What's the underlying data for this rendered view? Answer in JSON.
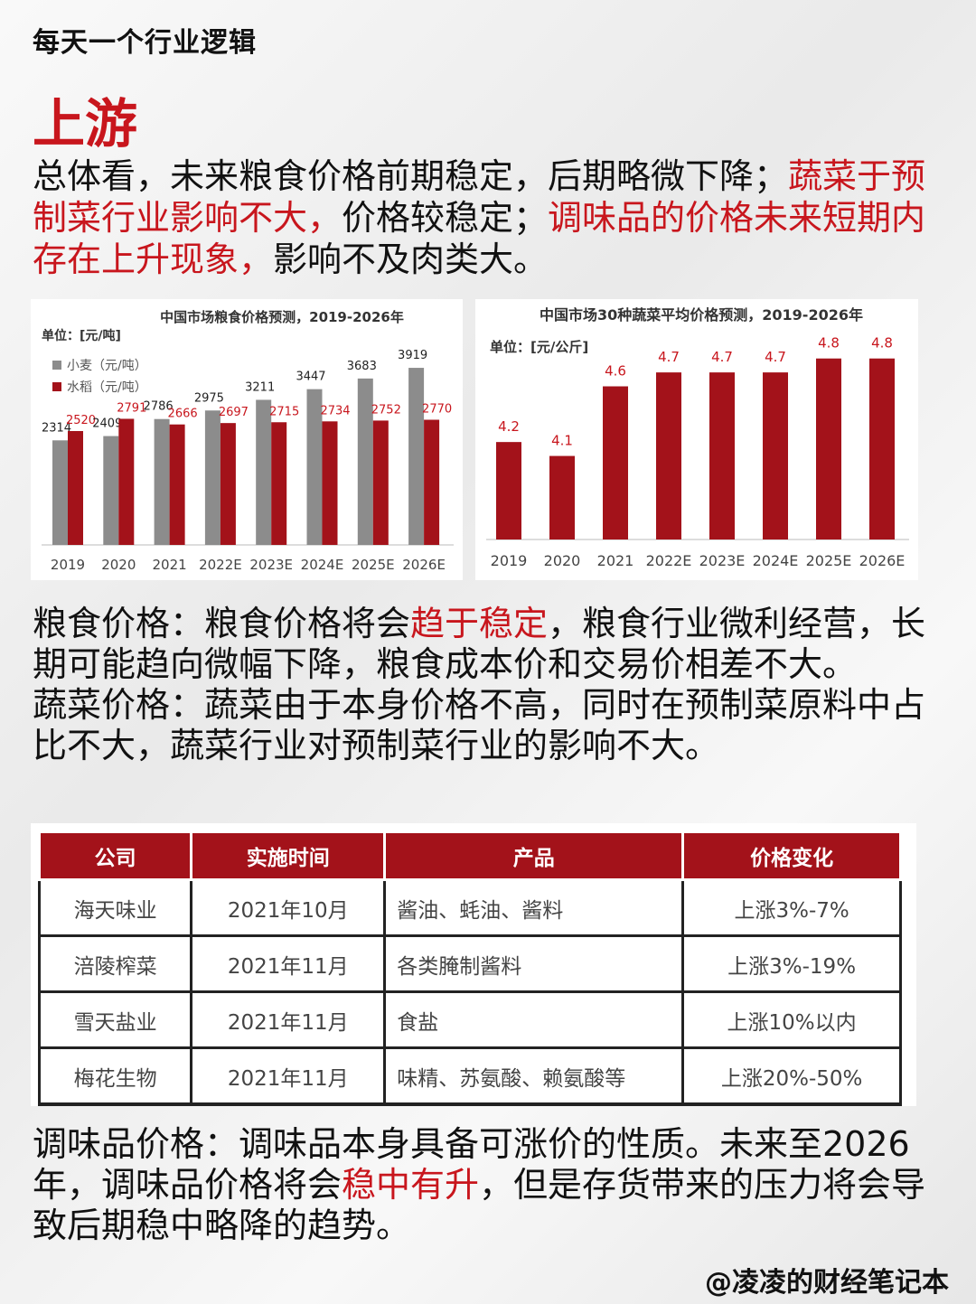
{
  "header": {
    "series_title": "每天一个行业逻辑",
    "section_title": "上游"
  },
  "intro": {
    "s1": "总体看，未来粮食价格前期稳定，后期略微下降；",
    "s2": "蔬菜于预制菜行业影响不大，",
    "s3": "价格较稳定；",
    "s4": "调味品的价格未来短期内存在上升现象，",
    "s5": "影响不及肉类大。"
  },
  "grain_text": {
    "a": "粮食价格：粮食价格将会",
    "b": "趋于稳定",
    "c": "，粮食行业微利经营，长期可能趋向微幅下降，粮食成本价和交易价相差不大。"
  },
  "veg_text": {
    "a": "蔬菜价格：蔬菜由于本身价格不高，同时在预制菜原料中占比不大，蔬菜行业对预制菜行业的影响不大。"
  },
  "seasoning_text": {
    "a": "调味品价格：调味品本身具备可涨价的性质。未来至2026年，调味品价格将会",
    "b": "稳中有升",
    "c": "，但是存货带来的压力将会导致后期稳中略降的趋势。"
  },
  "chart_data": [
    {
      "type": "bar",
      "title": "中国市场粮食价格预测，2019-2026年",
      "unit": "单位：[元/吨]",
      "categories": [
        "2019",
        "2020",
        "2021",
        "2022E",
        "2023E",
        "2024E",
        "2025E",
        "2026E"
      ],
      "series": [
        {
          "name": "小麦（元/吨）",
          "color": "#8c8c8c",
          "values": [
            2314,
            2409,
            2786,
            2975,
            3211,
            3447,
            3683,
            3919
          ]
        },
        {
          "name": "水稻（元/吨）",
          "color": "#a3121a",
          "values": [
            2520,
            2791,
            2666,
            2697,
            2715,
            2734,
            2752,
            2770
          ]
        }
      ],
      "ylim": [
        0,
        4000
      ]
    },
    {
      "type": "bar",
      "title": "中国市场30种蔬菜平均价格预测，2019-2026年",
      "unit": "单位：[元/公斤]",
      "categories": [
        "2019",
        "2020",
        "2021",
        "2022E",
        "2023E",
        "2024E",
        "2025E",
        "2026E"
      ],
      "values": [
        4.2,
        4.1,
        4.6,
        4.7,
        4.7,
        4.7,
        4.8,
        4.8
      ],
      "color": "#a3121a",
      "ylim": [
        3.5,
        4.85
      ]
    }
  ],
  "table": {
    "headers": [
      "公司",
      "实施时间",
      "产品",
      "价格变化"
    ],
    "rows": [
      [
        "海天味业",
        "2021年10月",
        "酱油、蚝油、酱料",
        "上涨3%-7%"
      ],
      [
        "涪陵榨菜",
        "2021年11月",
        "各类腌制酱料",
        "上涨3%-19%"
      ],
      [
        "雪天盐业",
        "2021年11月",
        "食盐",
        "上涨10%以内"
      ],
      [
        "梅花生物",
        "2021年11月",
        "味精、苏氨酸、赖氨酸等",
        "上涨20%-50%"
      ]
    ]
  },
  "footer": {
    "author": "@凌凌的财经笔记本"
  }
}
